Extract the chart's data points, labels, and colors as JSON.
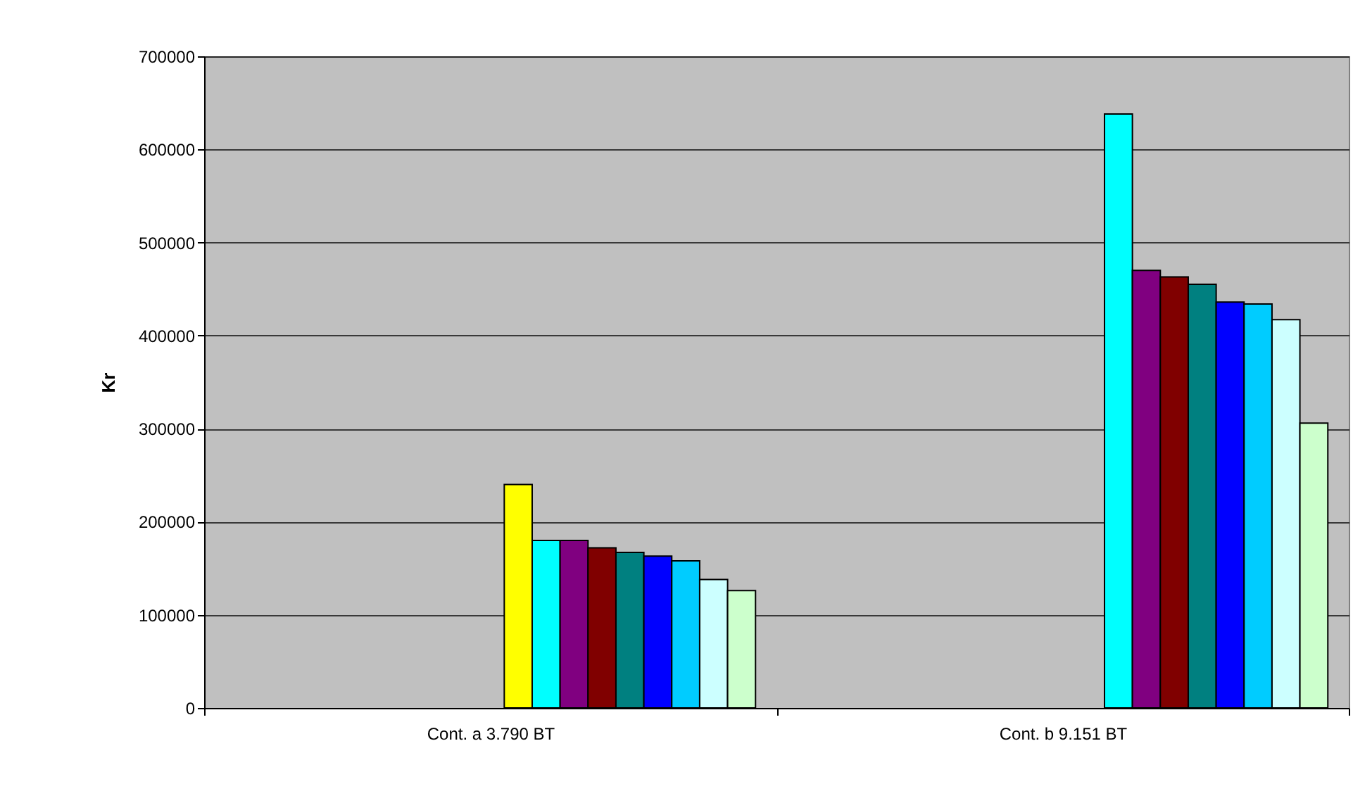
{
  "chart_data": {
    "type": "bar",
    "ylabel": "Kr",
    "categories": [
      "Cont. a 3.790 BT",
      "Cont. b 9.151 BT"
    ],
    "series": [
      {
        "values": [
          null,
          null
        ]
      },
      {
        "values": [
          null,
          null
        ]
      },
      {
        "values": [
          null,
          null
        ]
      },
      {
        "values": [
          null,
          null
        ]
      },
      {
        "values": [
          null,
          null
        ]
      },
      {
        "values": [
          null,
          null
        ]
      },
      {
        "values": [
          null,
          null
        ]
      },
      {
        "values": [
          null,
          null
        ]
      },
      {
        "values": [
          null,
          null
        ]
      },
      {
        "values": [
          null,
          null
        ]
      },
      {
        "color": "#ffff00",
        "values": [
          240000,
          null
        ]
      },
      {
        "color": "#00ffff",
        "values": [
          180000,
          638000
        ]
      },
      {
        "color": "#800080",
        "values": [
          180000,
          470000
        ]
      },
      {
        "color": "#800000",
        "values": [
          172000,
          463000
        ]
      },
      {
        "color": "#008080",
        "values": [
          167000,
          455000
        ]
      },
      {
        "color": "#0000ff",
        "values": [
          163000,
          436000
        ]
      },
      {
        "color": "#00ccff",
        "values": [
          158000,
          434000
        ]
      },
      {
        "color": "#ccffff",
        "values": [
          138000,
          417000
        ]
      },
      {
        "color": "#ccffcc",
        "values": [
          126000,
          306000
        ]
      }
    ],
    "ylim": [
      0,
      700000
    ],
    "yticks": [
      0,
      100000,
      200000,
      300000,
      400000,
      500000,
      600000,
      700000
    ],
    "grid": "y"
  }
}
